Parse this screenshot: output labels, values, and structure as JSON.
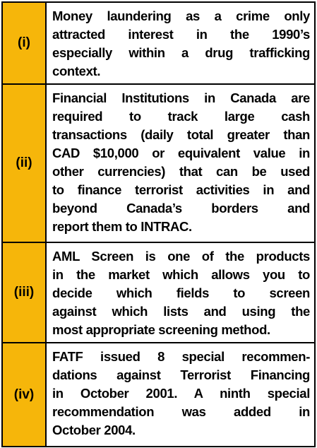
{
  "table": {
    "rows": [
      {
        "label": "(i)",
        "lines": [
          "Money laundering as a crime only",
          "attracted interest in the 1990’s",
          "especially within a drug trafficking",
          "context."
        ]
      },
      {
        "label": "(ii)",
        "lines": [
          "Financial Institutions in Canada are",
          "required to track large cash",
          "transactions (daily total greater than",
          "CAD $10,000 or equivalent value in",
          "other currencies) that can be used",
          "to finance terrorist activities in and",
          "beyond Canada’s borders and",
          "report them to INTRAC."
        ]
      },
      {
        "label": "(iii)",
        "lines": [
          "AML Screen is one of the products",
          "in the market which allows you to",
          "decide which fields to screen",
          "against which lists and using the",
          "most appropriate screening method."
        ]
      },
      {
        "label": "(iv)",
        "lines": [
          "FATF issued 8 special recommen-",
          "dations against Terrorist Financing",
          "in October 2001. A ninth special",
          "recommendation was added in",
          "October 2004."
        ]
      }
    ]
  }
}
